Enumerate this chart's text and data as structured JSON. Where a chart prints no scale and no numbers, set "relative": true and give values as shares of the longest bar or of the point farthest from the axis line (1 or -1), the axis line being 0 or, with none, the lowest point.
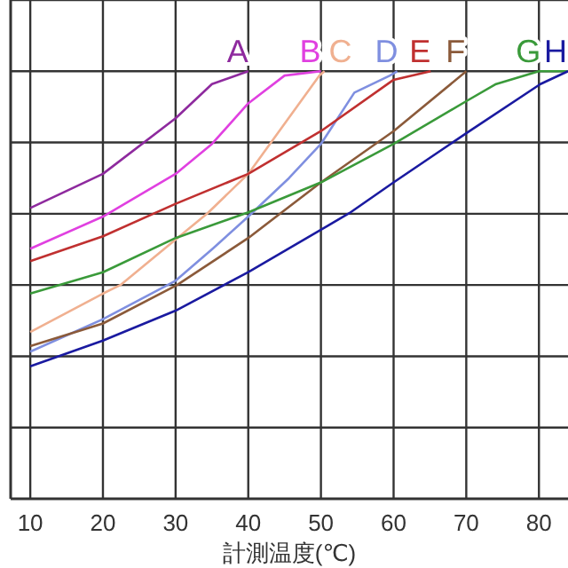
{
  "chart_data": {
    "type": "line",
    "relative": true,
    "xlabel": "計測温度(℃)",
    "xlim": [
      7.3,
      84
    ],
    "xticks": [
      10,
      20,
      30,
      40,
      50,
      60,
      70,
      80
    ],
    "grid": true,
    "marker": "none",
    "line_style": "solid",
    "series": [
      {
        "name": "A",
        "color": "#8e2a9e",
        "x": [
          10,
          20,
          30,
          35,
          40
        ],
        "values": [
          0.68,
          0.76,
          0.89,
          0.97,
          1
        ]
      },
      {
        "name": "B",
        "color": "#e040e0",
        "x": [
          10,
          20,
          30,
          35,
          40,
          45,
          50
        ],
        "values": [
          0.585,
          0.66,
          0.76,
          0.83,
          0.925,
          0.99,
          1
        ]
      },
      {
        "name": "C",
        "color": "#f0b090",
        "x": [
          10,
          20,
          22.4,
          34.4,
          40,
          49.8,
          50.5
        ],
        "values": [
          0.39,
          0.48,
          0.5,
          0.668,
          0.76,
          0.99,
          1
        ]
      },
      {
        "name": "D",
        "color": "#7f8fe0",
        "x": [
          10,
          20,
          30,
          35.1,
          40,
          45.6,
          50,
          54.6,
          59.5,
          60.5
        ],
        "values": [
          0.344,
          0.42,
          0.51,
          0.585,
          0.66,
          0.75,
          0.83,
          0.95,
          0.99,
          1
        ]
      },
      {
        "name": "E",
        "color": "#c03030",
        "x": [
          10,
          20,
          30,
          40,
          50,
          60,
          65.1
        ],
        "values": [
          0.556,
          0.614,
          0.69,
          0.76,
          0.86,
          0.98,
          1
        ]
      },
      {
        "name": "F",
        "color": "#8b5a3a",
        "x": [
          10,
          20,
          30.2,
          40,
          50,
          60,
          70
        ],
        "values": [
          0.357,
          0.41,
          0.5,
          0.61,
          0.74,
          0.86,
          1
        ]
      },
      {
        "name": "G",
        "color": "#3a9a3a",
        "x": [
          10,
          20,
          30,
          40,
          50,
          60,
          70,
          74.1,
          80,
          84
        ],
        "values": [
          0.48,
          0.53,
          0.61,
          0.67,
          0.74,
          0.83,
          0.93,
          0.97,
          1,
          1
        ]
      },
      {
        "name": "H",
        "color": "#1a1aa0",
        "x": [
          10,
          20,
          30,
          40,
          53.9,
          60,
          70,
          80.2,
          84
        ],
        "values": [
          0.31,
          0.37,
          0.44,
          0.53,
          0.668,
          0.74,
          0.855,
          0.97,
          1
        ]
      }
    ]
  }
}
